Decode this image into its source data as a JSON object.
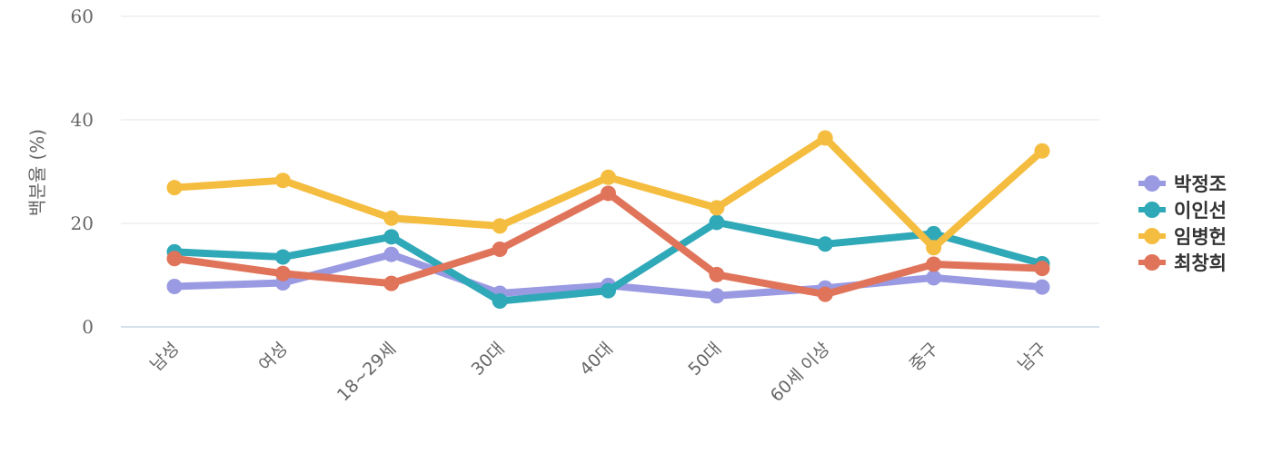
{
  "chart_data": {
    "type": "line",
    "title": "",
    "xlabel": "",
    "ylabel": "백분율 (%)",
    "ylim": [
      0,
      60
    ],
    "yticks": [
      0,
      20,
      40,
      60
    ],
    "grid": true,
    "legend_position": "right",
    "categories": [
      "남성",
      "여성",
      "18~29세",
      "30대",
      "40대",
      "50대",
      "60세 이상",
      "중구",
      "남구"
    ],
    "series": [
      {
        "name": "박정조",
        "color": "#9a9ae3",
        "values": [
          7.8,
          8.5,
          14.0,
          6.5,
          8.0,
          6.0,
          7.5,
          9.5,
          7.7
        ]
      },
      {
        "name": "이인선",
        "color": "#2fa8b7",
        "values": [
          14.5,
          13.5,
          17.4,
          5.0,
          7.0,
          20.2,
          16.0,
          18.0,
          12.2
        ]
      },
      {
        "name": "임병헌",
        "color": "#f5bd3f",
        "values": [
          26.9,
          28.3,
          21.0,
          19.5,
          28.9,
          23.0,
          36.5,
          15.3,
          34.0
        ]
      },
      {
        "name": "최창희",
        "color": "#e0745a",
        "values": [
          13.2,
          10.3,
          8.4,
          15.0,
          25.8,
          10.1,
          6.3,
          12.1,
          11.3
        ]
      }
    ]
  }
}
